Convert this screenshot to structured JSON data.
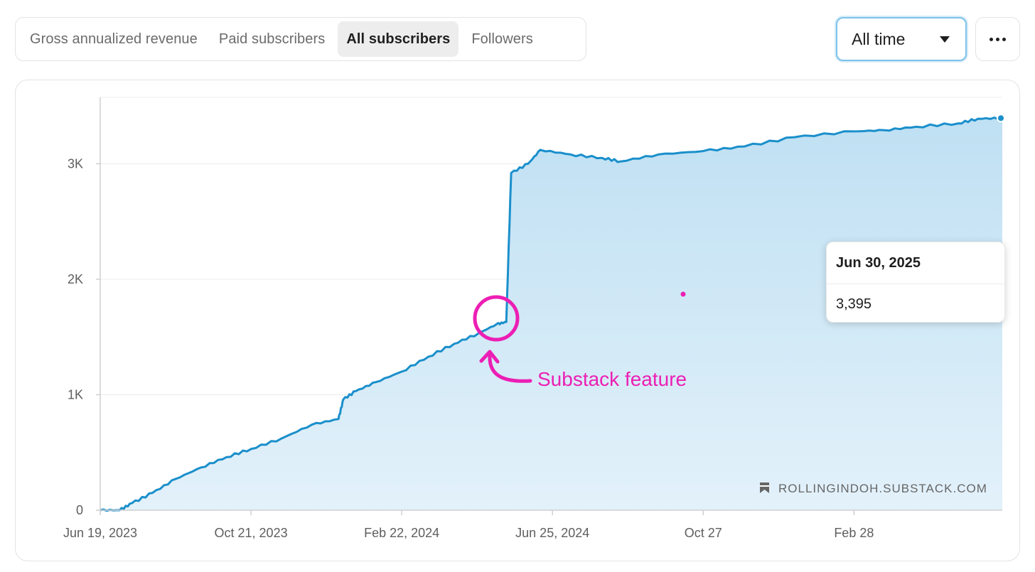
{
  "tabs": [
    {
      "label": "Gross annualized revenue",
      "active": false
    },
    {
      "label": "Paid subscribers",
      "active": false
    },
    {
      "label": "All subscribers",
      "active": true
    },
    {
      "label": "Followers",
      "active": false
    }
  ],
  "range_select": {
    "value": "All time"
  },
  "tooltip": {
    "date": "Jun 30, 2025",
    "value": "3,395"
  },
  "annotation": {
    "label": "Substack feature"
  },
  "watermark": {
    "text": "ROLLINGINDOH.SUBSTACK.COM",
    "icon": "bookmark-icon"
  },
  "colors": {
    "line": "#1a8fcb",
    "fill_top": "#bfe0f3",
    "fill_bottom": "#e3f1fa",
    "annotation": "#ec1fb4"
  },
  "chart_data": {
    "type": "area",
    "title": "",
    "xlabel": "",
    "ylabel": "",
    "ylim": [
      0,
      3575
    ],
    "yticks": [
      0,
      1000,
      2000,
      3000
    ],
    "ytick_labels": [
      "0",
      "1K",
      "2K",
      "3K"
    ],
    "xticks": [
      "2023-06-19",
      "2023-10-21",
      "2024-02-22",
      "2024-06-25",
      "2024-10-27",
      "2025-02-28"
    ],
    "xtick_labels": [
      "Jun 19, 2023",
      "Oct 21, 2023",
      "Feb 22, 2024",
      "Jun 25, 2024",
      "Oct 27",
      "Feb 28"
    ],
    "xlim": [
      "2023-06-19",
      "2025-06-30"
    ],
    "grid": true,
    "series": [
      {
        "points": [
          [
            "2023-06-19",
            0
          ],
          [
            "2023-07-05",
            0
          ],
          [
            "2023-07-15",
            60
          ],
          [
            "2023-08-01",
            150
          ],
          [
            "2023-08-20",
            270
          ],
          [
            "2023-09-10",
            370
          ],
          [
            "2023-10-01",
            460
          ],
          [
            "2023-10-21",
            530
          ],
          [
            "2023-11-15",
            620
          ],
          [
            "2023-12-10",
            740
          ],
          [
            "2024-01-01",
            790
          ],
          [
            "2024-01-05",
            960
          ],
          [
            "2024-01-15",
            1030
          ],
          [
            "2024-02-01",
            1110
          ],
          [
            "2024-02-22",
            1200
          ],
          [
            "2024-03-15",
            1330
          ],
          [
            "2024-04-05",
            1440
          ],
          [
            "2024-04-25",
            1530
          ],
          [
            "2024-05-10",
            1610
          ],
          [
            "2024-05-18",
            1630
          ],
          [
            "2024-05-22",
            2920
          ],
          [
            "2024-06-05",
            3000
          ],
          [
            "2024-06-15",
            3120
          ],
          [
            "2024-07-10",
            3080
          ],
          [
            "2024-08-05",
            3050
          ],
          [
            "2024-08-20",
            3020
          ],
          [
            "2024-09-20",
            3080
          ],
          [
            "2024-10-27",
            3110
          ],
          [
            "2024-11-30",
            3150
          ],
          [
            "2025-01-10",
            3230
          ],
          [
            "2025-02-28",
            3280
          ],
          [
            "2025-03-25",
            3290
          ],
          [
            "2025-04-20",
            3320
          ],
          [
            "2025-05-25",
            3350
          ],
          [
            "2025-06-10",
            3390
          ],
          [
            "2025-06-30",
            3395
          ]
        ]
      }
    ],
    "highlight_point": {
      "x": "2025-06-30",
      "y": 3395
    }
  }
}
